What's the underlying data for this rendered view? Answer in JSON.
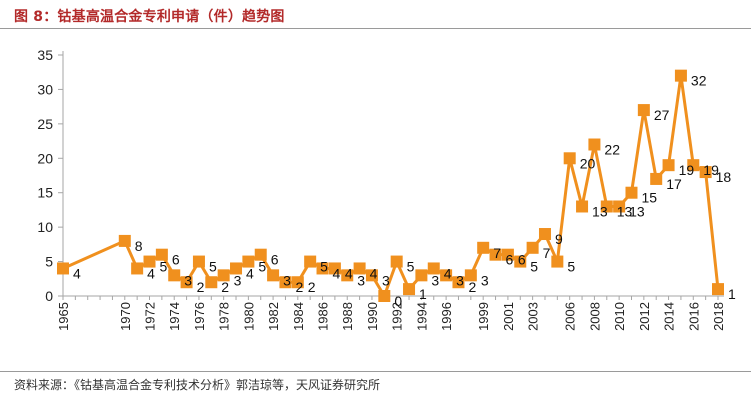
{
  "title": "图 8：钴基高温合金专利申请（件）趋势图",
  "source": "资料来源：《钴基高温合金专利技术分析》郭洁琼等，天风证券研究所",
  "colors": {
    "series": "#F0901E",
    "title": "#B32A2A",
    "axis": "#A6A6A6"
  },
  "chart_data": {
    "type": "line",
    "marker": "square",
    "ylim": [
      0,
      35
    ],
    "yticks": [
      "0",
      "5",
      "10",
      "15",
      "20",
      "25",
      "30",
      "35"
    ],
    "grid": false,
    "x": [
      1965,
      1966,
      1967,
      1968,
      1969,
      1970,
      1971,
      1972,
      1973,
      1974,
      1975,
      1976,
      1977,
      1978,
      1979,
      1980,
      1981,
      1982,
      1983,
      1984,
      1985,
      1986,
      1987,
      1988,
      1989,
      1990,
      1991,
      1992,
      1993,
      1994,
      1995,
      1996,
      1997,
      1998,
      1999,
      2000,
      2001,
      2002,
      2003,
      2004,
      2005,
      2006,
      2007,
      2008,
      2009,
      2010,
      2011,
      2012,
      2013,
      2014,
      2015,
      2016,
      2017,
      2018
    ],
    "xtick_labels": [
      "1965",
      "1970",
      "1972",
      "1974",
      "1976",
      "1978",
      "1980",
      "1982",
      "1984",
      "1986",
      "1988",
      "1990",
      "1992",
      "1994",
      "1996",
      "1999",
      "2001",
      "2003",
      "2006",
      "2008",
      "2010",
      "2012",
      "2014",
      "2016",
      "2018"
    ],
    "series": [
      {
        "values": [
          4,
          8,
          4,
          5,
          6,
          3,
          2,
          5,
          2,
          3,
          4,
          5,
          6,
          3,
          2,
          2,
          5,
          4,
          4,
          3,
          4,
          3,
          0,
          5,
          1,
          3,
          4,
          3,
          2,
          3,
          7,
          6,
          6,
          5,
          7,
          9,
          5,
          20,
          13,
          22,
          13,
          13,
          15,
          27,
          17,
          19,
          32,
          19,
          18,
          1
        ],
        "x": [
          1965,
          1970,
          1971,
          1972,
          1973,
          1974,
          1975,
          1976,
          1977,
          1978,
          1979,
          1980,
          1981,
          1982,
          1983,
          1984,
          1985,
          1986,
          1987,
          1988,
          1989,
          1990,
          1991,
          1992,
          1993,
          1994,
          1995,
          1996,
          1997,
          1998,
          1999,
          2000,
          2001,
          2002,
          2003,
          2004,
          2005,
          2006,
          2007,
          2008,
          2009,
          2010,
          2011,
          2012,
          2013,
          2014,
          2015,
          2016,
          2017,
          2018
        ]
      }
    ],
    "data_labels": [
      "4",
      "8",
      "4",
      "5",
      "6",
      "3",
      "2",
      "5",
      "2",
      "3",
      "4",
      "5",
      "6",
      "3",
      "2",
      "2",
      "5",
      "4",
      "4",
      "3",
      "4",
      "3",
      "0",
      "5",
      "1",
      "3",
      "4",
      "3",
      "2",
      "3",
      "7",
      "6",
      "6",
      "5",
      "7",
      "9",
      "5",
      "20",
      "13",
      "22",
      "13",
      "13",
      "15",
      "27",
      "17",
      "19",
      "32",
      "19",
      "18",
      "1"
    ]
  }
}
